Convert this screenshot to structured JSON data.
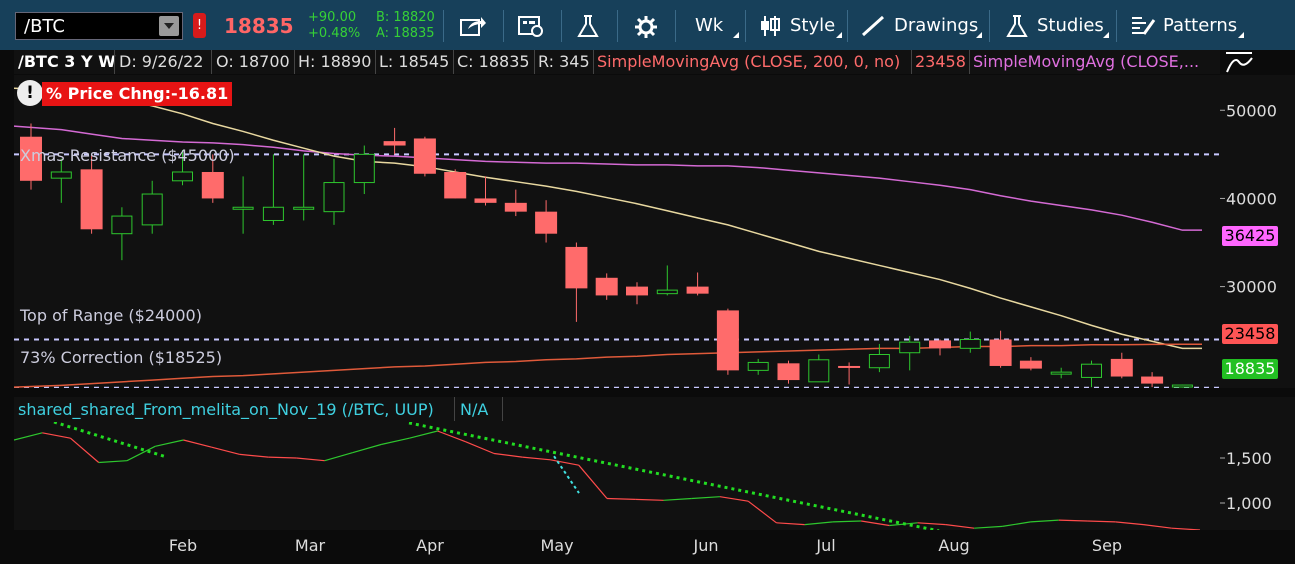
{
  "toolbar": {
    "symbol": "/BTC",
    "last": "18835",
    "net_change": "+90.00",
    "pct_change": "+0.48%",
    "bid": "B: 18820",
    "ask": "A: 18835",
    "aggregation": "Wk",
    "style_label": "Style",
    "drawings_label": "Drawings",
    "studies_label": "Studies",
    "patterns_label": "Patterns"
  },
  "info": {
    "title": "/BTC 3 Y W",
    "date": "D: 9/26/22",
    "open": "O: 18700",
    "high": "H: 18890",
    "low": "L: 18545",
    "close": "C: 18835",
    "range": "R: 345",
    "sma200": "SimpleMovingAvg (CLOSE, 200, 0, no)",
    "sma200_value": "23458",
    "sma2": "SimpleMovingAvg (CLOSE,..."
  },
  "price_badge": "% Price Chng:-16.81",
  "levels": {
    "xmas": "Xmas Resistance ($45000)",
    "top": "Top of Range ($24000)",
    "correction": "73% Correction ($18525)"
  },
  "colors": {
    "up": "#2ec72e",
    "down": "#ff6b6b",
    "sma200": "#e05a3a",
    "sma_magenta": "#d46ad4",
    "sma_tan": "#e8d8a0",
    "level_line": "#c8c8ff"
  },
  "lower": {
    "title": "shared_shared_From_melita_on_Nov_19 (/BTC, UUP)",
    "value": "N/A"
  },
  "axis_tags": {
    "magenta": "36425",
    "sma200": "23458",
    "last": "18835"
  },
  "chart_data": {
    "type": "candlestick",
    "x_ticks": [
      "Feb",
      "Mar",
      "Apr",
      "May",
      "Jun",
      "Jul",
      "Aug",
      "Sep"
    ],
    "y_ticks": [
      30000,
      40000,
      50000
    ],
    "y_tick_labels": [
      "30000",
      "40000",
      "50000"
    ],
    "ylim": [
      18500,
      54000
    ],
    "candles": [
      {
        "o": 47000,
        "h": 48500,
        "l": 41000,
        "c": 42000
      },
      {
        "o": 42300,
        "h": 44500,
        "l": 39500,
        "c": 43000
      },
      {
        "o": 43300,
        "h": 45000,
        "l": 36000,
        "c": 36500
      },
      {
        "o": 36000,
        "h": 39000,
        "l": 33000,
        "c": 38000
      },
      {
        "o": 37000,
        "h": 42000,
        "l": 36000,
        "c": 40500
      },
      {
        "o": 42000,
        "h": 45500,
        "l": 41500,
        "c": 43000
      },
      {
        "o": 43000,
        "h": 45000,
        "l": 39500,
        "c": 40000
      },
      {
        "o": 39000,
        "h": 42500,
        "l": 36000,
        "c": 39000
      },
      {
        "o": 37500,
        "h": 45000,
        "l": 37000,
        "c": 39000
      },
      {
        "o": 39000,
        "h": 45000,
        "l": 37500,
        "c": 39000
      },
      {
        "o": 38500,
        "h": 44500,
        "l": 37000,
        "c": 41800
      },
      {
        "o": 41800,
        "h": 46000,
        "l": 40500,
        "c": 45000
      },
      {
        "o": 46500,
        "h": 48000,
        "l": 45000,
        "c": 46000
      },
      {
        "o": 46800,
        "h": 47000,
        "l": 42500,
        "c": 42800
      },
      {
        "o": 43000,
        "h": 43300,
        "l": 40000,
        "c": 40000
      },
      {
        "o": 40000,
        "h": 42500,
        "l": 39200,
        "c": 39500
      },
      {
        "o": 39500,
        "h": 41000,
        "l": 38000,
        "c": 38500
      },
      {
        "o": 38500,
        "h": 39800,
        "l": 35000,
        "c": 36000
      },
      {
        "o": 34500,
        "h": 35000,
        "l": 26000,
        "c": 29800
      },
      {
        "o": 31000,
        "h": 31500,
        "l": 28500,
        "c": 29000
      },
      {
        "o": 30000,
        "h": 30500,
        "l": 28000,
        "c": 29000
      },
      {
        "o": 29200,
        "h": 32400,
        "l": 29000,
        "c": 29600
      },
      {
        "o": 30000,
        "h": 31600,
        "l": 29000,
        "c": 29200
      },
      {
        "o": 27300,
        "h": 27500,
        "l": 20000,
        "c": 20500
      },
      {
        "o": 20500,
        "h": 21800,
        "l": 20000,
        "c": 21400
      },
      {
        "o": 21300,
        "h": 21600,
        "l": 19000,
        "c": 19400
      },
      {
        "o": 19200,
        "h": 22300,
        "l": 19200,
        "c": 21700
      },
      {
        "o": 21000,
        "h": 21400,
        "l": 18900,
        "c": 20900
      },
      {
        "o": 20800,
        "h": 23500,
        "l": 20300,
        "c": 22300
      },
      {
        "o": 22500,
        "h": 24400,
        "l": 20500,
        "c": 23700
      },
      {
        "o": 23900,
        "h": 24000,
        "l": 22200,
        "c": 23000
      },
      {
        "o": 23000,
        "h": 24900,
        "l": 22500,
        "c": 24000
      },
      {
        "o": 24000,
        "h": 25000,
        "l": 20800,
        "c": 21000
      },
      {
        "o": 21600,
        "h": 22000,
        "l": 20500,
        "c": 20700
      },
      {
        "o": 20300,
        "h": 20800,
        "l": 19600,
        "c": 20300
      },
      {
        "o": 19700,
        "h": 21600,
        "l": 18600,
        "c": 21200
      },
      {
        "o": 21800,
        "h": 22500,
        "l": 19600,
        "c": 19800
      },
      {
        "o": 19800,
        "h": 20300,
        "l": 18600,
        "c": 19000
      },
      {
        "o": 18700,
        "h": 18890,
        "l": 18545,
        "c": 18835
      }
    ],
    "sma_tan": [
      52500,
      52300,
      52000,
      51300,
      50500,
      49600,
      48500,
      47600,
      46600,
      45700,
      44800,
      44200,
      44000,
      43600,
      43000,
      42400,
      41900,
      41400,
      40800,
      40100,
      39400,
      38600,
      37800,
      37000,
      36000,
      35000,
      34000,
      33200,
      32400,
      31600,
      30800,
      29800,
      28700,
      27700,
      26700,
      25600,
      24600,
      23800,
      23000
    ],
    "sma_magenta": [
      48200,
      47800,
      47300,
      46800,
      46600,
      46400,
      46300,
      46100,
      45800,
      45400,
      45100,
      44900,
      44800,
      44600,
      44400,
      44200,
      44100,
      44000,
      44000,
      43900,
      43800,
      43800,
      43700,
      43700,
      43500,
      43200,
      42900,
      42600,
      42300,
      41900,
      41500,
      41000,
      40300,
      39700,
      39200,
      38700,
      38100,
      37300,
      36400
    ],
    "sma200": [
      18600,
      18800,
      19000,
      19200,
      19400,
      19600,
      19800,
      19900,
      20100,
      20300,
      20500,
      20700,
      20900,
      21000,
      21200,
      21400,
      21500,
      21700,
      21800,
      22000,
      22100,
      22300,
      22400,
      22500,
      22600,
      22700,
      22800,
      22900,
      23000,
      23000,
      23100,
      23200,
      23200,
      23300,
      23300,
      23400,
      23400,
      23450,
      23458
    ],
    "levels": [
      45000,
      24000,
      18525
    ],
    "lower": {
      "y_ticks": [
        1000,
        1500
      ],
      "y_tick_labels": [
        "1,000",
        "1,500"
      ],
      "ylim": [
        700,
        1900
      ],
      "values": [
        1700,
        1780,
        1720,
        1450,
        1470,
        1630,
        1700,
        1620,
        1540,
        1510,
        1500,
        1470,
        1560,
        1650,
        1720,
        1800,
        1680,
        1550,
        1510,
        1480,
        1420,
        1050,
        1040,
        1030,
        1050,
        1070,
        1020,
        780,
        760,
        790,
        800,
        750,
        780,
        760,
        720,
        740,
        790,
        810,
        800,
        790,
        760,
        720,
        700
      ],
      "colors_up": "#2ec72e",
      "colors_down": "#ff4b4b"
    }
  }
}
